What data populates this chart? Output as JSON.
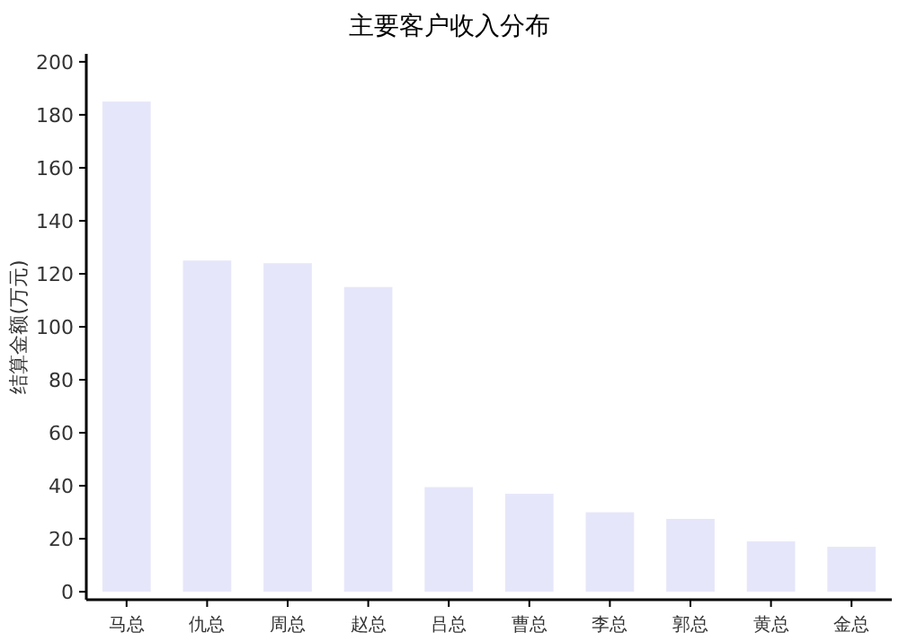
{
  "chart_data": {
    "type": "bar",
    "title": "主要客户收入分布",
    "ylabel": "结算金额(万元)",
    "categories": [
      "马总",
      "仇总",
      "周总",
      "赵总",
      "吕总",
      "曹总",
      "李总",
      "郭总",
      "黄总",
      "金总"
    ],
    "series": [
      {
        "color": "#e6e6fa",
        "values": [
          185,
          125,
          124,
          115,
          39.5,
          37,
          30,
          27.5,
          19,
          17
        ]
      }
    ],
    "ylim": [
      -3,
      203
    ],
    "yticks": [
      0,
      20,
      40,
      60,
      80,
      100,
      120,
      140,
      160,
      180,
      200
    ],
    "grid": false
  }
}
